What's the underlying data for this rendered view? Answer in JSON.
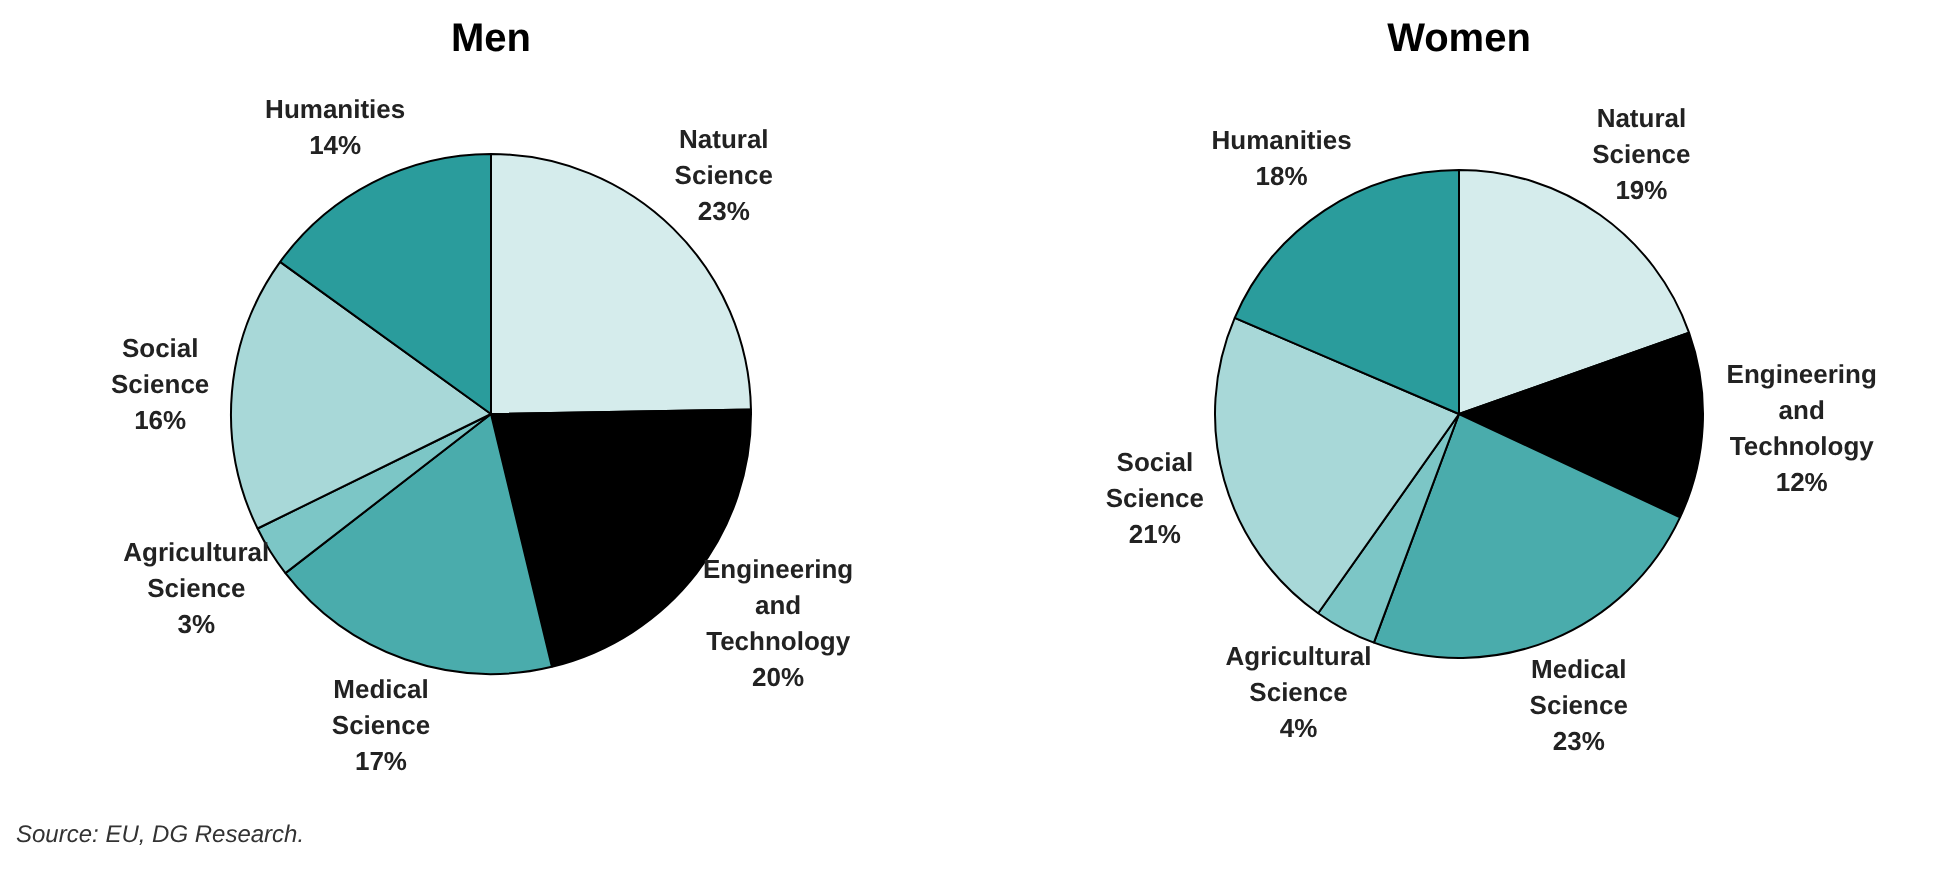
{
  "chart_data": [
    {
      "type": "pie",
      "title": "Men",
      "categories": [
        "Natural Science",
        "Engineering and Technology",
        "Medical Science",
        "Agricultural Science",
        "Social Science",
        "Humanities"
      ],
      "values": [
        23,
        20,
        17,
        3,
        16,
        14
      ],
      "value_labels": [
        "23%",
        "20%",
        "17%",
        "3%",
        "16%",
        "14%"
      ],
      "colors": [
        "#d5ecec",
        "#000000",
        "#4aacac",
        "#7cc6c6",
        "#a8d8d8",
        "#2a9c9c"
      ],
      "legend": false,
      "annotations": [
        "Source: EU, DG Research."
      ]
    },
    {
      "type": "pie",
      "title": "Women",
      "categories": [
        "Natural Science",
        "Engineering and Technology",
        "Medical Science",
        "Agricultural Science",
        "Social Science",
        "Humanities"
      ],
      "values": [
        19,
        12,
        23,
        4,
        21,
        18
      ],
      "value_labels": [
        "19%",
        "12%",
        "23%",
        "4%",
        "21%",
        "18%"
      ],
      "colors": [
        "#d5ecec",
        "#000000",
        "#4aacac",
        "#7cc6c6",
        "#a8d8d8",
        "#2a9c9c"
      ],
      "legend": false
    }
  ]
}
